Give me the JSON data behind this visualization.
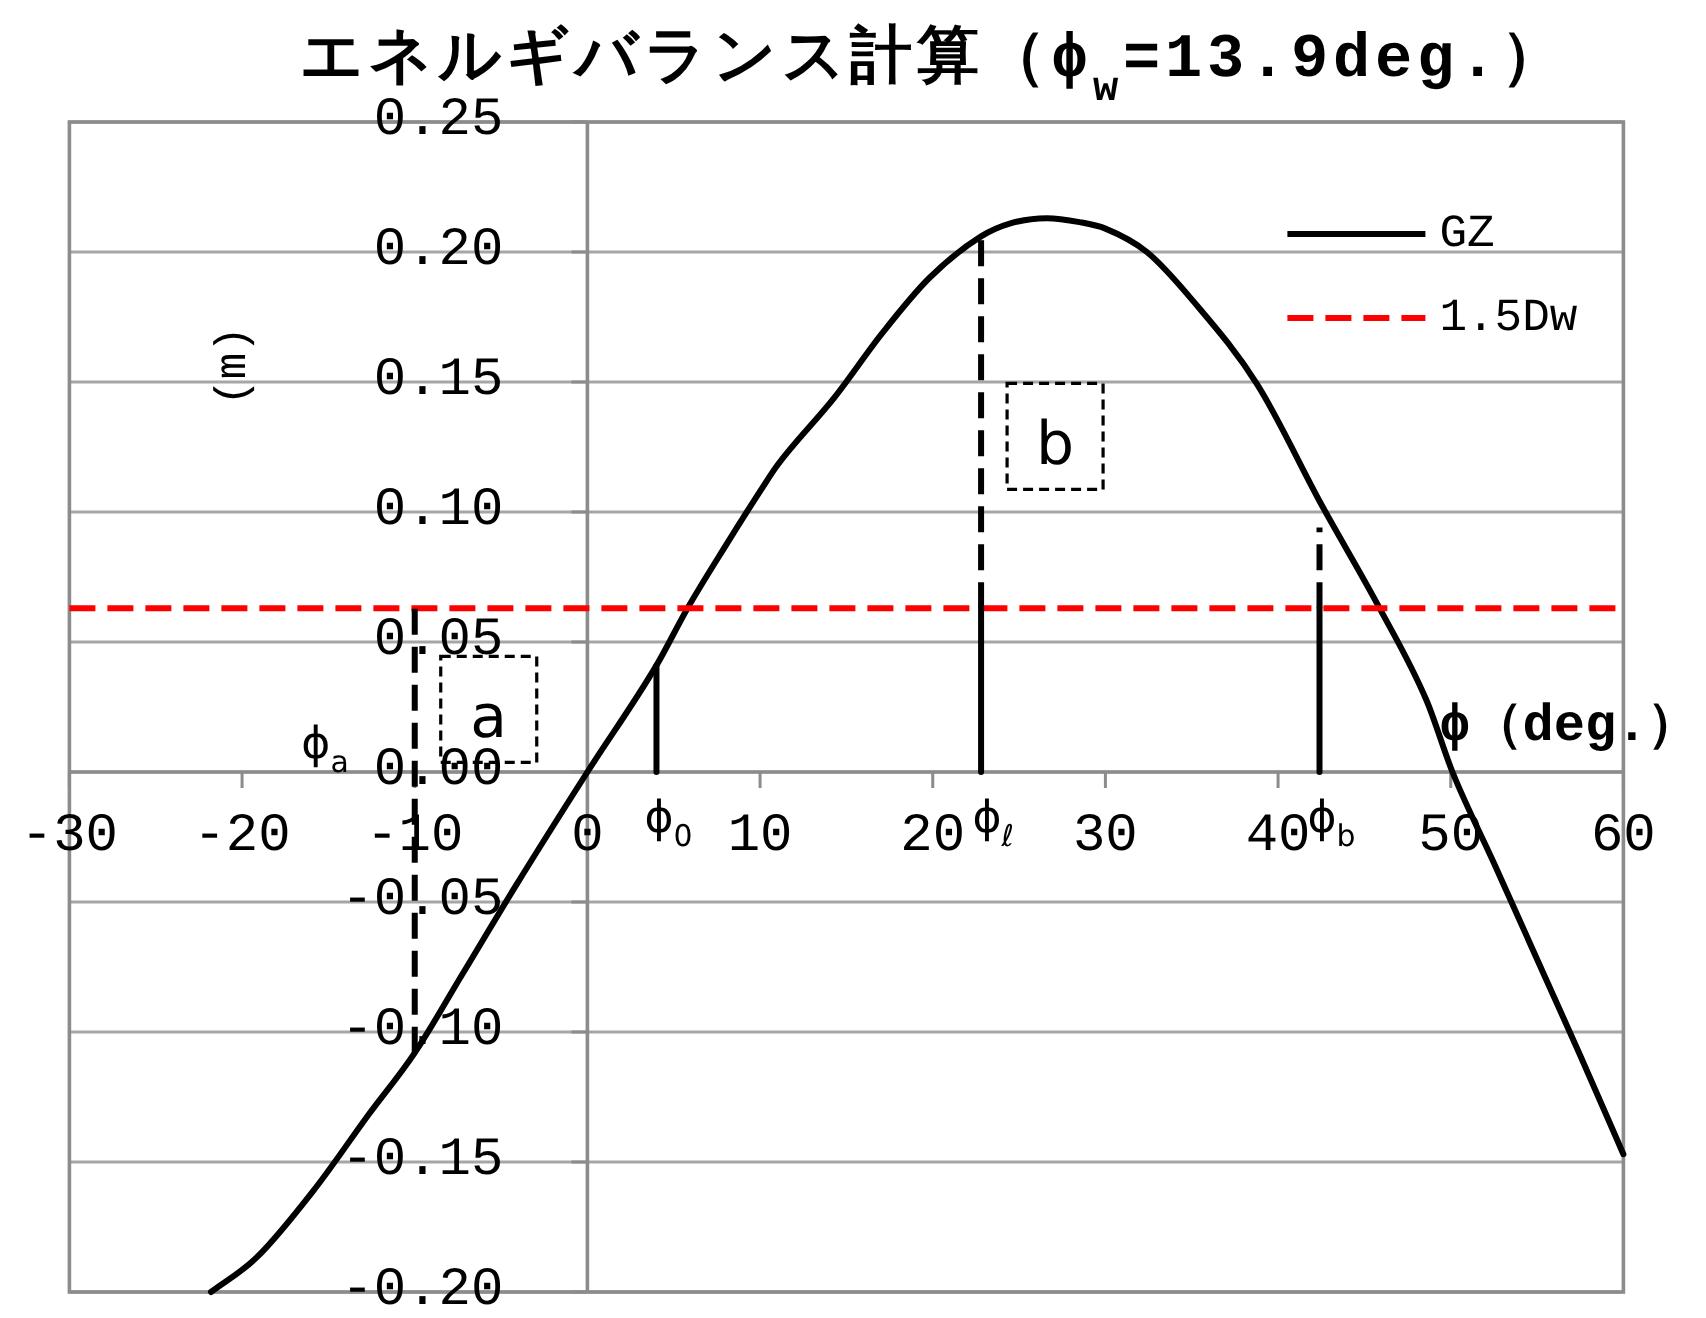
{
  "chart_data": {
    "type": "line",
    "title": "エネルギバランス計算（ϕ$_{w}$=13.9deg.）",
    "xlabel": "ϕ（deg.）",
    "ylabel": "(m)",
    "xlim": [
      -30,
      60
    ],
    "xticks": [
      -30,
      -20,
      -10,
      0,
      10,
      20,
      30,
      40,
      50,
      60
    ],
    "ylim": [
      -0.2,
      0.25
    ],
    "yticks": [
      {
        "value": 0.25,
        "label": "0.25"
      },
      {
        "value": 0.2,
        "label": "0.20"
      },
      {
        "value": 0.15,
        "label": "0.15"
      },
      {
        "value": 0.1,
        "label": "0.10"
      },
      {
        "value": 0.05,
        "label": "0.05"
      },
      {
        "value": 0,
        "label": "0.00"
      },
      {
        "value": -0.05,
        "label": "-0.05"
      },
      {
        "value": -0.1,
        "label": "-0.10"
      },
      {
        "value": -0.15,
        "label": "-0.15"
      },
      {
        "value": -0.2,
        "label": "-0.20"
      }
    ],
    "grid": "y",
    "legend": "top right",
    "series": [
      {
        "name": "GZ",
        "color": "#000000",
        "x": [
          -21.8,
          -19.2,
          -15.75,
          -12.7,
          -10,
          -7.26,
          -4.17,
          0,
          4,
          5.8,
          8,
          10.1,
          11,
          14.3,
          17.1,
          19.8,
          22.8,
          24.5,
          26.6,
          28.5,
          30,
          32.4,
          35.1,
          38.8,
          42.5,
          45.8,
          48.6,
          50.1,
          52.5,
          55,
          57.5,
          60
        ],
        "values": [
          -0.2,
          -0.187,
          -0.16,
          -0.132,
          -0.108,
          -0.078,
          -0.044,
          0,
          0.041,
          0.063,
          0.087,
          0.109,
          0.118,
          0.144,
          0.169,
          0.19,
          0.206,
          0.211,
          0.213,
          0.2115,
          0.209,
          0.2,
          0.181,
          0.149,
          0.103,
          0.064,
          0.0275,
          0,
          -0.035,
          -0.072,
          -0.109,
          -0.147
        ]
      },
      {
        "name": "1.5Dw",
        "color": "#ff0000",
        "line_style": "dashed",
        "x": [
          -30,
          60
        ],
        "values": [
          0.063,
          0.063
        ]
      },
      {
        "color": "#000000",
        "line_style": "dashed",
        "x": [
          -10,
          -10
        ],
        "values": [
          -0.108,
          0.063
        ]
      },
      {
        "color": "#000000",
        "x": [
          4,
          4
        ],
        "values": [
          0,
          0.041
        ]
      },
      {
        "color": "#000000",
        "x": [
          22.8,
          22.8
        ],
        "values": [
          0,
          0.063
        ]
      },
      {
        "color": "#000000",
        "line_style": "dashed",
        "x": [
          22.8,
          22.8
        ],
        "values": [
          0.063,
          0.206
        ]
      },
      {
        "color": "#000000",
        "x": [
          42.4,
          42.4
        ],
        "values": [
          0,
          0.063
        ]
      },
      {
        "color": "#000000",
        "line_style": "dashed",
        "x": [
          42.4,
          42.4
        ],
        "values": [
          0.063,
          0.094
        ]
      }
    ],
    "annotations": [
      {
        "text": "ϕ$_{a}$",
        "x": -10,
        "y": 0
      },
      {
        "text": "ϕ$_{0}$",
        "x": 4,
        "y": 0
      },
      {
        "text": "ϕ$_{ℓ}$",
        "x": 22.8,
        "y": 0
      },
      {
        "text": "ϕ$_{b}$",
        "x": 42.4,
        "y": 0
      },
      {
        "text": "a",
        "x": -10,
        "y": 0.021
      },
      {
        "text": "b",
        "x": 22.8,
        "y": 0.126
      }
    ]
  }
}
